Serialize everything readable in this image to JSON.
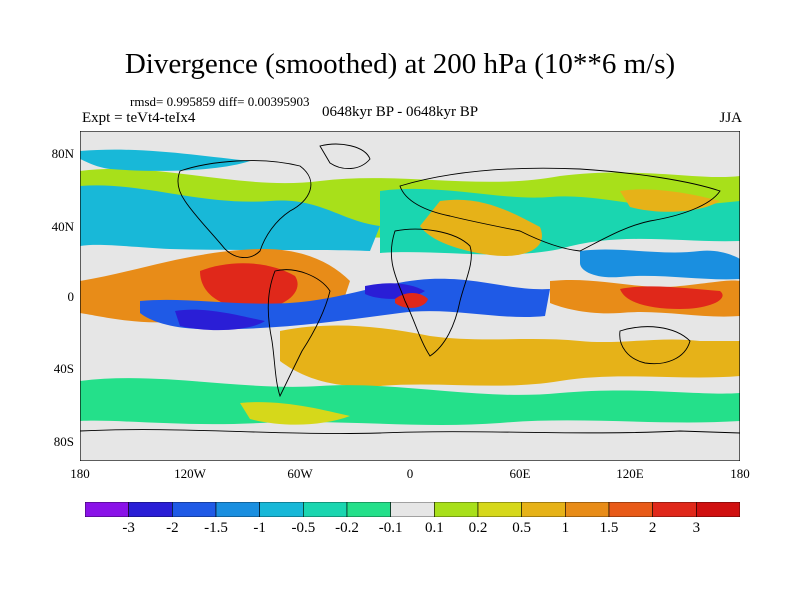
{
  "title": "Divergence (smoothed) at 200 hPa (10**6 m/s)",
  "stats": "rmsd= 0.995859 diff= 0.00395903",
  "experiment": "Expt = teVt4-teIx4",
  "period": "0648kyr BP - 0648kyr BP",
  "season": "JJA",
  "lat_ticks": [
    "80N",
    "40N",
    "0",
    "40S",
    "80S"
  ],
  "lon_ticks": [
    "180",
    "120W",
    "60W",
    "0",
    "60E",
    "120E",
    "180"
  ],
  "colorbar": {
    "labels": [
      "-3",
      "-2",
      "-1.5",
      "-1",
      "-0.5",
      "-0.2",
      "-0.1",
      "0.1",
      "0.2",
      "0.5",
      "1",
      "1.5",
      "2",
      "3"
    ],
    "colors": [
      "#8a12e8",
      "#2a1ed6",
      "#1f5ae6",
      "#1a8fe0",
      "#18b8d8",
      "#1ad6b0",
      "#24e08a",
      "#e6e6e6",
      "#a8e01a",
      "#d6d81a",
      "#e6b218",
      "#e88c18",
      "#e85a18",
      "#e0281a",
      "#d01010"
    ]
  },
  "fill_colors": {
    "neutral": "#e6e6e6",
    "ocean_bg": "#e6e6e6"
  }
}
